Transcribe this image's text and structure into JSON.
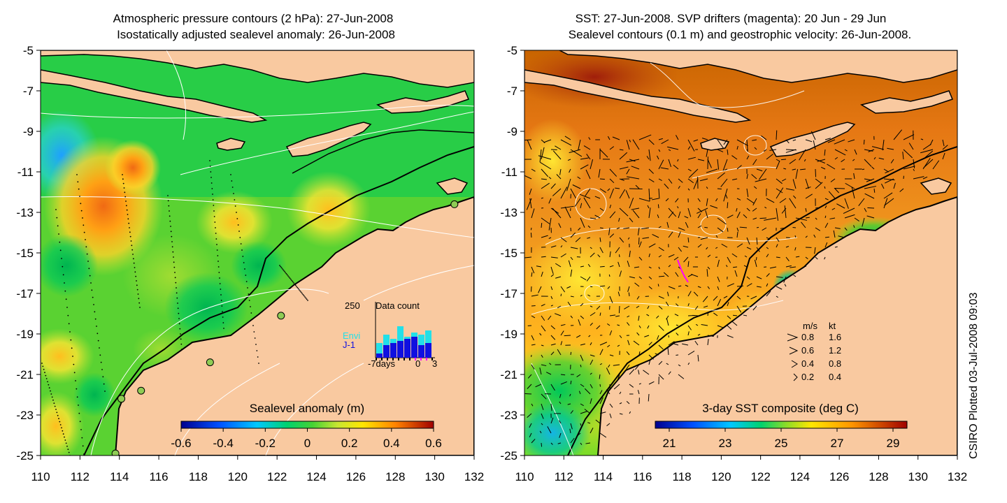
{
  "left_panel": {
    "title_line1": "Atmospheric pressure contours (2 hPa): 27-Jun-2008",
    "title_line2": "Isostatically adjusted sealevel anomaly: 26-Jun-2008",
    "colorbar": {
      "title": "Sealevel anomaly (m)",
      "ticks": [
        "-0.6",
        "-0.4",
        "-0.2",
        "0",
        "0.2",
        "0.4",
        "0.6"
      ],
      "range": [
        -0.6,
        0.6
      ]
    },
    "inset": {
      "title": "Data count",
      "ymax_label": "250",
      "legend": [
        {
          "label": "Envi",
          "color": "#22e0e8"
        },
        {
          "label": "J-1",
          "color": "#1010e0"
        }
      ],
      "x_labels": [
        "-7days",
        "0",
        "3"
      ],
      "envi_fraction": [
        0.35,
        0.55,
        0.45,
        0.75,
        0.5,
        0.6,
        0.55,
        0.65
      ],
      "j1_fraction": [
        0.1,
        0.3,
        0.35,
        0.4,
        0.45,
        0.5,
        0.3,
        0.35
      ]
    },
    "tide_gauge_color": "#8fcc55"
  },
  "right_panel": {
    "title_line1": "SST: 27-Jun-2008. SVP drifters (magenta): 20 Jun - 29 Jun",
    "title_line2": "Sealevel contours (0.1 m) and geostrophic velocity: 26-Jun-2008.",
    "colorbar": {
      "title": "3-day SST composite (deg C)",
      "ticks": [
        "21",
        "23",
        "25",
        "27",
        "29"
      ],
      "range": [
        20.5,
        29.5
      ]
    },
    "velocity_key": {
      "header_ms": "m/s",
      "header_kt": "kt",
      "rows": [
        {
          "ms": "0.8",
          "kt": "1.6"
        },
        {
          "ms": "0.6",
          "kt": "1.2"
        },
        {
          "ms": "0.4",
          "kt": "0.8"
        },
        {
          "ms": "0.2",
          "kt": "0.4"
        }
      ]
    },
    "drifter_color": "#ff00ff"
  },
  "axes": {
    "lon_ticks": [
      "110",
      "112",
      "114",
      "116",
      "118",
      "120",
      "122",
      "124",
      "126",
      "128",
      "130",
      "132"
    ],
    "lat_ticks": [
      "-5",
      "-7",
      "-9",
      "-11",
      "-13",
      "-15",
      "-17",
      "-19",
      "-21",
      "-23",
      "-25"
    ],
    "lon_range": [
      110,
      132
    ],
    "lat_range": [
      -25,
      -5
    ]
  },
  "credit": "CSIRO Plotted 03-Jul-2008 09:03",
  "colors": {
    "land": "#f9c9a0",
    "coast": "#000000",
    "contour": "#ffffff"
  }
}
